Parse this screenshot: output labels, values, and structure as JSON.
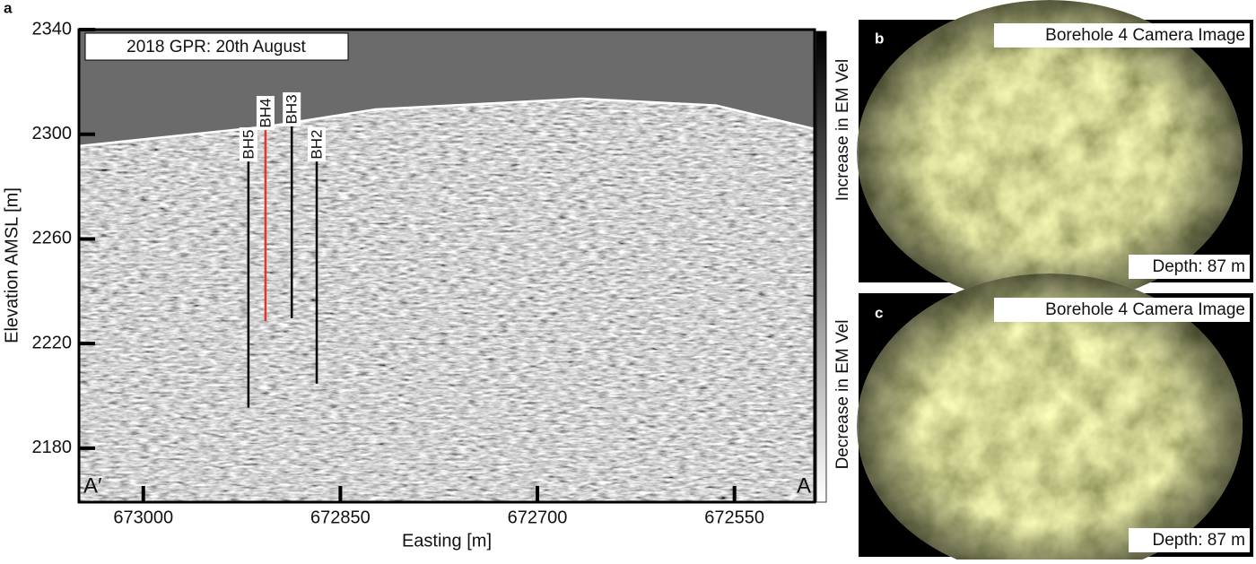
{
  "panel_labels": [
    "a",
    "b",
    "c"
  ],
  "chart_data": {
    "type": "radargram",
    "annotation": "2018 GPR: 20th August",
    "x_label": "Easting [m]",
    "y_label": "Elevation AMSL [m]",
    "xlim": [
      673049,
      672489
    ],
    "xticks": [
      673000,
      672850,
      672700,
      672550
    ],
    "ylim": [
      2159.4,
      2340
    ],
    "yticks": [
      2180,
      2220,
      2260,
      2300,
      2340
    ],
    "profile_ends": [
      "A′",
      "A"
    ],
    "colorbar_labels": [
      "Decrease in EM Vel",
      "Increase in EM Vel"
    ],
    "surface": {
      "color": "#ffffff",
      "x": [
        673049,
        672905,
        672823,
        672666,
        672564,
        672489
      ],
      "values": [
        2295.5,
        2303,
        2309.5,
        2313.6,
        2311,
        2302
      ]
    },
    "boreholes": [
      {
        "name": "BH5",
        "easting": 672920,
        "top": 2289.6,
        "bottom": 2195.5,
        "color": "#000000"
      },
      {
        "name": "BH4",
        "easting": 672907,
        "top": 2301.6,
        "bottom": 2228.6,
        "color": "#e8322c"
      },
      {
        "name": "BH3",
        "easting": 672887,
        "top": 2303,
        "bottom": 2229.7,
        "color": "#000000"
      },
      {
        "name": "BH2",
        "easting": 672868,
        "top": 2289.6,
        "bottom": 2204.7,
        "color": "#000000"
      }
    ]
  },
  "camera_images": [
    {
      "title": "Borehole 4 Camera Image",
      "caption": "Depth: 87 m"
    },
    {
      "title": "Borehole 4 Camera Image",
      "caption": "Depth: 87 m"
    }
  ]
}
